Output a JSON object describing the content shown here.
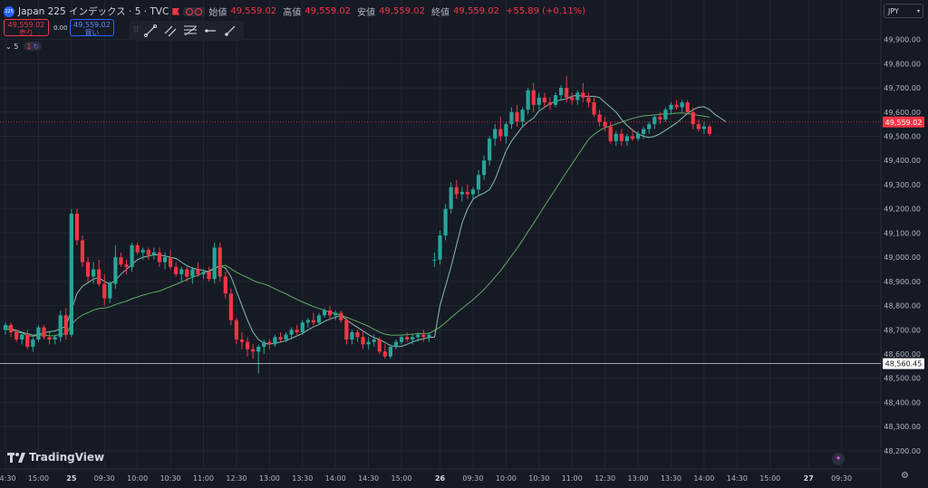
{
  "header": {
    "symbol_badge": "225",
    "title": "Japan 225 インデックス · 5 · TVC",
    "open_label": "始値",
    "open": "49,559.02",
    "high_label": "高値",
    "high": "49,559.02",
    "low_label": "安値",
    "low": "49,559.02",
    "close_label": "終値",
    "close": "49,559.02",
    "change": "+55.89 (+0.11%)"
  },
  "trade": {
    "sell_price": "49,559.02",
    "sell_label": "売り",
    "spread": "0.00",
    "buy_price": "49,559.02",
    "buy_label": "買い"
  },
  "indicator": {
    "collapse_label": "5",
    "badge_count": "1"
  },
  "currency": {
    "label": "JPY"
  },
  "branding": {
    "logo_text": "TradingView"
  },
  "colors": {
    "background": "#161a25",
    "up": "#26a69a",
    "down": "#f23645",
    "grid": "#232632",
    "text": "#b2b5be",
    "ma_fast": "#8fd3bd",
    "ma_slow": "#66bb6a"
  },
  "chart_data": {
    "type": "candlestick",
    "ylim": [
      48160,
      49960
    ],
    "y_ticks": [
      "49,900.00",
      "49,800.00",
      "49,700.00",
      "49,600.00",
      "49,500.00",
      "49,400.00",
      "49,300.00",
      "49,200.00",
      "49,100.00",
      "49,000.00",
      "48,900.00",
      "48,800.00",
      "48,700.00",
      "48,600.00",
      "48,500.00",
      "48,400.00",
      "48,300.00",
      "48,200.00"
    ],
    "y_tick_values": [
      49900,
      49800,
      49700,
      49600,
      49500,
      49400,
      49300,
      49200,
      49100,
      49000,
      48900,
      48800,
      48700,
      48600,
      48500,
      48400,
      48300,
      48200
    ],
    "x_ticks": [
      {
        "i": 0,
        "label": "14:30"
      },
      {
        "i": 6,
        "label": "15:00"
      },
      {
        "i": 12,
        "label": "25"
      },
      {
        "i": 18,
        "label": "09:30"
      },
      {
        "i": 24,
        "label": "10:00"
      },
      {
        "i": 30,
        "label": "10:30"
      },
      {
        "i": 36,
        "label": "11:00"
      },
      {
        "i": 42,
        "label": "12:30"
      },
      {
        "i": 48,
        "label": "13:00"
      },
      {
        "i": 54,
        "label": "13:30"
      },
      {
        "i": 60,
        "label": "14:00"
      },
      {
        "i": 66,
        "label": "14:30"
      },
      {
        "i": 72,
        "label": "15:00"
      },
      {
        "i": 79,
        "label": "26"
      },
      {
        "i": 85,
        "label": "09:30"
      },
      {
        "i": 91,
        "label": "10:00"
      },
      {
        "i": 97,
        "label": "10:30"
      },
      {
        "i": 103,
        "label": "11:00"
      },
      {
        "i": 109,
        "label": "12:30"
      },
      {
        "i": 115,
        "label": "13:00"
      },
      {
        "i": 121,
        "label": "13:30"
      },
      {
        "i": 127,
        "label": "14:00"
      },
      {
        "i": 133,
        "label": "14:30"
      },
      {
        "i": 139,
        "label": "15:00"
      },
      {
        "i": 146,
        "label": "27"
      },
      {
        "i": 152,
        "label": "09:30"
      }
    ],
    "candles": [
      [
        48700,
        48730,
        48680,
        48720
      ],
      [
        48720,
        48730,
        48670,
        48690
      ],
      [
        48690,
        48700,
        48650,
        48660
      ],
      [
        48660,
        48690,
        48640,
        48680
      ],
      [
        48680,
        48700,
        48620,
        48630
      ],
      [
        48630,
        48670,
        48610,
        48660
      ],
      [
        48660,
        48720,
        48650,
        48710
      ],
      [
        48710,
        48720,
        48660,
        48670
      ],
      [
        48670,
        48690,
        48640,
        48660
      ],
      [
        48660,
        48680,
        48640,
        48670
      ],
      [
        48670,
        48780,
        48650,
        48760
      ],
      [
        48760,
        48790,
        48660,
        48680
      ],
      [
        48680,
        49200,
        48670,
        49180
      ],
      [
        49180,
        49200,
        49050,
        49070
      ],
      [
        49070,
        49090,
        48960,
        48980
      ],
      [
        48980,
        49000,
        48900,
        48920
      ],
      [
        48920,
        48980,
        48890,
        48950
      ],
      [
        48950,
        48990,
        48880,
        48890
      ],
      [
        48890,
        48930,
        48800,
        48830
      ],
      [
        48830,
        48900,
        48810,
        48890
      ],
      [
        48890,
        49050,
        48870,
        49000
      ],
      [
        49000,
        49020,
        48960,
        48970
      ],
      [
        48970,
        48990,
        48930,
        48960
      ],
      [
        48960,
        49060,
        48940,
        49050
      ],
      [
        49050,
        49060,
        49010,
        49020
      ],
      [
        49020,
        49040,
        48990,
        49030
      ],
      [
        49030,
        49040,
        48990,
        49010
      ],
      [
        49010,
        49040,
        48990,
        49020
      ],
      [
        49020,
        49040,
        48960,
        48980
      ],
      [
        48980,
        49020,
        48950,
        49000
      ],
      [
        49000,
        49030,
        48950,
        48960
      ],
      [
        48960,
        48980,
        48920,
        48930
      ],
      [
        48930,
        48960,
        48900,
        48950
      ],
      [
        48950,
        48960,
        48900,
        48920
      ],
      [
        48920,
        48960,
        48890,
        48950
      ],
      [
        48950,
        48980,
        48920,
        48930
      ],
      [
        48930,
        48950,
        48910,
        48940
      ],
      [
        48940,
        48960,
        48900,
        48910
      ],
      [
        48910,
        49060,
        48890,
        49040
      ],
      [
        49040,
        49060,
        48900,
        48920
      ],
      [
        48920,
        48940,
        48830,
        48850
      ],
      [
        48850,
        48870,
        48720,
        48740
      ],
      [
        48740,
        48750,
        48640,
        48660
      ],
      [
        48660,
        48690,
        48620,
        48650
      ],
      [
        48650,
        48670,
        48590,
        48620
      ],
      [
        48620,
        48640,
        48580,
        48610
      ],
      [
        48610,
        48640,
        48520,
        48630
      ],
      [
        48630,
        48660,
        48600,
        48650
      ],
      [
        48650,
        48660,
        48620,
        48640
      ],
      [
        48640,
        48680,
        48630,
        48670
      ],
      [
        48670,
        48690,
        48650,
        48660
      ],
      [
        48660,
        48690,
        48650,
        48680
      ],
      [
        48680,
        48710,
        48660,
        48700
      ],
      [
        48700,
        48720,
        48680,
        48690
      ],
      [
        48690,
        48740,
        48680,
        48730
      ],
      [
        48730,
        48750,
        48710,
        48740
      ],
      [
        48740,
        48770,
        48720,
        48730
      ],
      [
        48730,
        48770,
        48720,
        48760
      ],
      [
        48760,
        48790,
        48750,
        48780
      ],
      [
        48780,
        48800,
        48740,
        48760
      ],
      [
        48760,
        48780,
        48740,
        48770
      ],
      [
        48770,
        48780,
        48730,
        48740
      ],
      [
        48740,
        48750,
        48640,
        48660
      ],
      [
        48660,
        48700,
        48640,
        48690
      ],
      [
        48690,
        48700,
        48650,
        48670
      ],
      [
        48670,
        48700,
        48620,
        48640
      ],
      [
        48640,
        48670,
        48620,
        48650
      ],
      [
        48650,
        48680,
        48630,
        48660
      ],
      [
        48660,
        48670,
        48600,
        48610
      ],
      [
        48610,
        48640,
        48580,
        48590
      ],
      [
        48590,
        48640,
        48580,
        48630
      ],
      [
        48630,
        48660,
        48620,
        48650
      ],
      [
        48650,
        48680,
        48640,
        48670
      ],
      [
        48670,
        48690,
        48650,
        48660
      ],
      [
        48660,
        48680,
        48640,
        48670
      ],
      [
        48670,
        48690,
        48650,
        48680
      ],
      [
        48680,
        48700,
        48650,
        48670
      ],
      [
        48670,
        48690,
        48650,
        48680
      ],
      [
        48990,
        49020,
        48960,
        48990
      ],
      [
        48990,
        49110,
        48970,
        49090
      ],
      [
        49090,
        49220,
        49070,
        49200
      ],
      [
        49200,
        49310,
        49180,
        49290
      ],
      [
        49290,
        49320,
        49240,
        49260
      ],
      [
        49260,
        49290,
        49230,
        49270
      ],
      [
        49270,
        49300,
        49240,
        49260
      ],
      [
        49260,
        49290,
        49240,
        49280
      ],
      [
        49280,
        49360,
        49260,
        49340
      ],
      [
        49340,
        49420,
        49320,
        49400
      ],
      [
        49400,
        49500,
        49380,
        49490
      ],
      [
        49490,
        49550,
        49460,
        49530
      ],
      [
        49530,
        49580,
        49480,
        49500
      ],
      [
        49500,
        49560,
        49470,
        49550
      ],
      [
        49550,
        49620,
        49530,
        49600
      ],
      [
        49600,
        49630,
        49540,
        49560
      ],
      [
        49560,
        49620,
        49540,
        49610
      ],
      [
        49610,
        49700,
        49590,
        49690
      ],
      [
        49690,
        49720,
        49600,
        49630
      ],
      [
        49630,
        49680,
        49610,
        49660
      ],
      [
        49660,
        49680,
        49620,
        49640
      ],
      [
        49640,
        49660,
        49610,
        49630
      ],
      [
        49630,
        49680,
        49620,
        49670
      ],
      [
        49670,
        49710,
        49650,
        49700
      ],
      [
        49700,
        49750,
        49640,
        49660
      ],
      [
        49660,
        49680,
        49630,
        49650
      ],
      [
        49650,
        49690,
        49630,
        49680
      ],
      [
        49680,
        49720,
        49640,
        49660
      ],
      [
        49660,
        49680,
        49620,
        49640
      ],
      [
        49640,
        49660,
        49580,
        49590
      ],
      [
        49590,
        49610,
        49540,
        49560
      ],
      [
        49560,
        49580,
        49520,
        49540
      ],
      [
        49540,
        49560,
        49470,
        49480
      ],
      [
        49480,
        49520,
        49460,
        49510
      ],
      [
        49510,
        49530,
        49460,
        49480
      ],
      [
        49480,
        49510,
        49460,
        49500
      ],
      [
        49500,
        49530,
        49480,
        49490
      ],
      [
        49490,
        49520,
        49480,
        49510
      ],
      [
        49510,
        49540,
        49490,
        49530
      ],
      [
        49530,
        49560,
        49510,
        49550
      ],
      [
        49550,
        49590,
        49530,
        49580
      ],
      [
        49580,
        49600,
        49550,
        49570
      ],
      [
        49570,
        49620,
        49560,
        49610
      ],
      [
        49610,
        49640,
        49590,
        49630
      ],
      [
        49630,
        49650,
        49610,
        49620
      ],
      [
        49620,
        49650,
        49600,
        49640
      ],
      [
        49640,
        49650,
        49590,
        49600
      ],
      [
        49600,
        49620,
        49530,
        49550
      ],
      [
        49550,
        49570,
        49520,
        49530
      ],
      [
        49530,
        49560,
        49510,
        49540
      ],
      [
        49540,
        49550,
        49500,
        49510
      ]
    ],
    "ma_fast": [
      48700,
      48705,
      48698,
      48690,
      48684,
      48678,
      48680,
      48688,
      48692,
      48695,
      48705,
      48715,
      48780,
      48850,
      48880,
      48895,
      48910,
      48915,
      48900,
      48890,
      48905,
      48930,
      48950,
      48970,
      48990,
      49000,
      49005,
      49010,
      49010,
      49005,
      49000,
      48995,
      48980,
      48965,
      48955,
      48950,
      48945,
      48940,
      48955,
      48965,
      48955,
      48920,
      48860,
      48800,
      48740,
      48690,
      48660,
      48645,
      48640,
      48645,
      48650,
      48655,
      48665,
      48675,
      48685,
      48700,
      48712,
      48722,
      48735,
      48745,
      48752,
      48760,
      48742,
      48725,
      48710,
      48695,
      48680,
      48668,
      48660,
      48648,
      48635,
      48630,
      48632,
      48640,
      48650,
      48658,
      48663,
      48668,
      48670,
      48800,
      48880,
      48960,
      49050,
      49140,
      49200,
      49240,
      49255,
      49265,
      49280,
      49320,
      49380,
      49440,
      49480,
      49510,
      49540,
      49560,
      49575,
      49605,
      49620,
      49635,
      49645,
      49650,
      49655,
      49665,
      49670,
      49665,
      49665,
      49665,
      49660,
      49640,
      49620,
      49600,
      49570,
      49545,
      49525,
      49510,
      49500,
      49495,
      49500,
      49510,
      49525,
      49540,
      49555,
      49575,
      49595,
      49610,
      49620,
      49622,
      49610,
      49590,
      49575,
      49560
    ]
  }
}
